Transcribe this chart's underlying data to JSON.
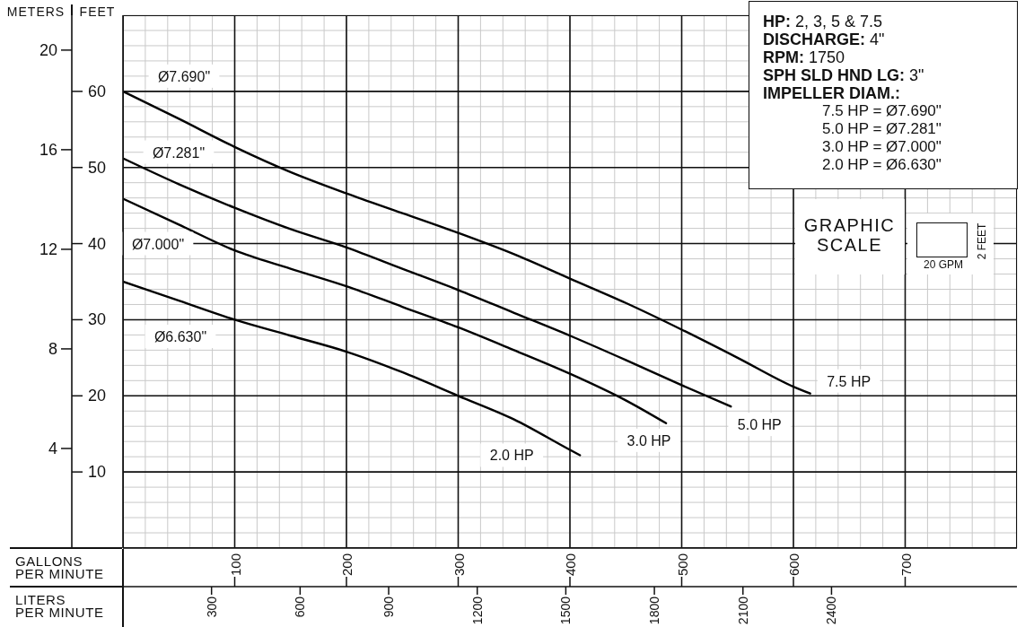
{
  "chart_data": {
    "type": "line",
    "xlabel": "GALLONS\nPER MINUTE",
    "x2label": "LITERS\nPER MINUTE",
    "ylabel": "FEET",
    "y2label": "METERS",
    "xlim": [
      0,
      800
    ],
    "xticks": [
      100,
      200,
      300,
      400,
      500,
      600,
      700
    ],
    "x2lim": [
      0,
      3028
    ],
    "x2ticks": [
      300,
      600,
      900,
      1200,
      1500,
      1800,
      2100,
      2400
    ],
    "ylim": [
      0,
      70
    ],
    "yticks": [
      10,
      20,
      30,
      40,
      50,
      60
    ],
    "y2lim": [
      0,
      21.4
    ],
    "y2ticks": [
      4,
      8,
      12,
      16,
      20
    ],
    "grid": true,
    "line_style": "solid",
    "series": [
      {
        "name": "7.5 HP",
        "color": "#000000",
        "x": [
          0,
          50,
          100,
          150,
          200,
          250,
          300,
          350,
          400,
          450,
          500,
          550,
          600,
          615
        ],
        "values": [
          60,
          56.4,
          52.7,
          49.4,
          46.6,
          44.0,
          41.4,
          38.6,
          35.4,
          32.2,
          28.7,
          25.0,
          21.2,
          20.3
        ]
      },
      {
        "name": "5.0 HP",
        "color": "#000000",
        "x": [
          0,
          50,
          100,
          150,
          200,
          250,
          300,
          350,
          400,
          450,
          500,
          544
        ],
        "values": [
          51.2,
          47.8,
          44.7,
          41.9,
          39.5,
          36.7,
          33.9,
          30.9,
          27.9,
          24.7,
          21.4,
          18.6
        ]
      },
      {
        "name": "3.0 HP",
        "color": "#000000",
        "x": [
          0,
          50,
          100,
          150,
          200,
          250,
          300,
          350,
          400,
          450,
          486
        ],
        "values": [
          45.9,
          42.5,
          39.1,
          36.7,
          34.4,
          31.7,
          29.0,
          26.0,
          22.9,
          19.4,
          16.4
        ]
      },
      {
        "name": "2.0 HP",
        "color": "#000000",
        "x": [
          0,
          50,
          100,
          150,
          200,
          250,
          300,
          350,
          400,
          409
        ],
        "values": [
          35.0,
          32.5,
          30.0,
          27.9,
          25.8,
          23.1,
          20.0,
          16.9,
          12.9,
          12.2
        ]
      }
    ],
    "annotations": [
      "Ø7.690\"",
      "Ø7.281\"",
      "Ø7.000\"",
      "Ø6.630\"",
      "HP: 2, 3, 5 & 7.5",
      "DISCHARGE: 4\"",
      "RPM: 1750",
      "SPH SLD HND LG: 3\"",
      "IMPELLER DIAM.:",
      "7.5 HP = Ø7.690\"",
      "5.0 HP = Ø7.281\"",
      "3.0 HP = Ø7.000\"",
      "2.0 HP = Ø6.630\"",
      "GRAPHIC SCALE",
      "20 GPM",
      "2 FEET"
    ]
  }
}
